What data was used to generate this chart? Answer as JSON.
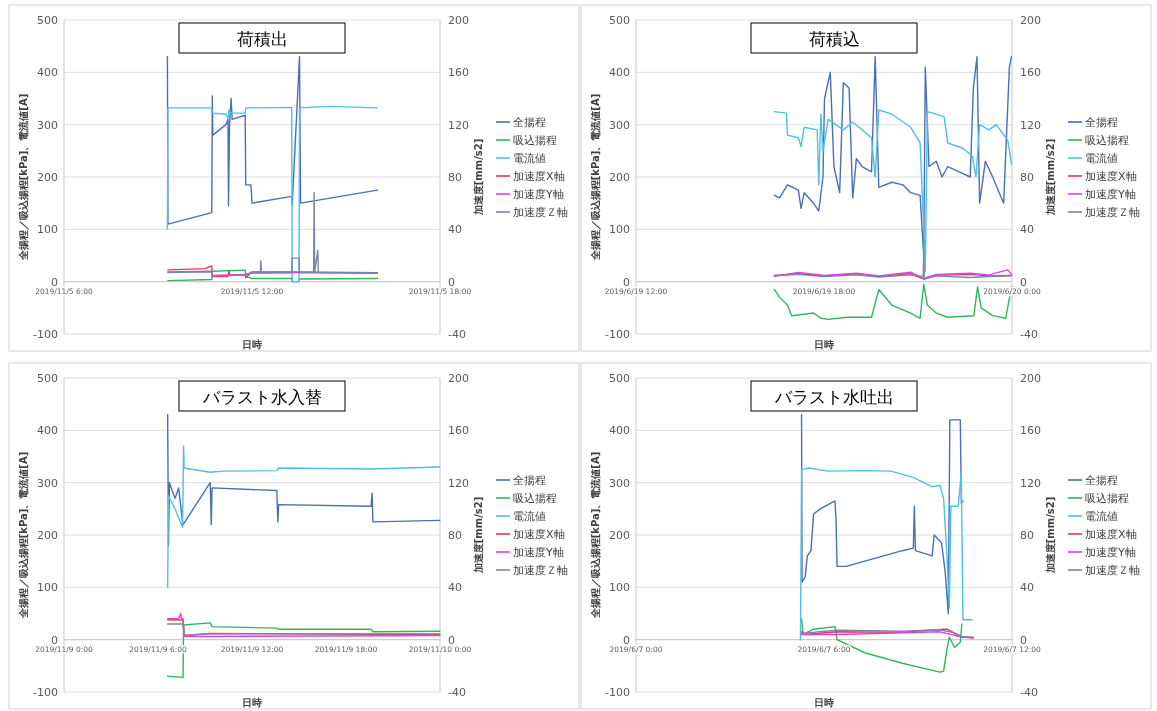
{
  "chart_data": [
    {
      "type": "line",
      "title": "荷積出",
      "xlabel": "日時",
      "ylabel": "全揚程／吸込揚程[kPa]、電流値[A]",
      "y2label": "加速度[mm/s2]",
      "grid": "y",
      "legend": "right",
      "xlim": [
        "2019-11-05T06:00",
        "2019-11-05T18:00"
      ],
      "xticks": [
        {
          "value": "2019-11-05T06:00",
          "label": "2019/11/5 6:00"
        },
        {
          "value": "2019-11-05T12:00",
          "label": "2019/11/5 12:00"
        },
        {
          "value": "2019-11-05T18:00",
          "label": "2019/11/5 18:00"
        }
      ],
      "ylim": [
        -100,
        500
      ],
      "yticks": [
        -100,
        0,
        100,
        200,
        300,
        400,
        500
      ],
      "y2lim": [
        -40,
        200
      ],
      "y2ticks": [
        -40,
        0,
        40,
        80,
        120,
        160,
        200
      ],
      "series": [
        {
          "name": "全揚程",
          "color": "#4a6fb5",
          "x": [
            "2019-11-05T09:18",
            "2019-11-05T09:19",
            "2019-11-05T10:43",
            "2019-11-05T10:44",
            "2019-11-05T10:45",
            "2019-11-05T11:10",
            "2019-11-05T11:14",
            "2019-11-05T11:15",
            "2019-11-05T11:17",
            "2019-11-05T11:20",
            "2019-11-05T11:22",
            "2019-11-05T11:47",
            "2019-11-05T11:48",
            "2019-11-05T11:58",
            "2019-11-05T12:00",
            "2019-11-05T13:16",
            "2019-11-05T13:17",
            "2019-11-05T13:31",
            "2019-11-05T13:33",
            "2019-11-05T16:00"
          ],
          "values": [
            430,
            110,
            132,
            355,
            280,
            300,
            310,
            145,
            300,
            350,
            310,
            318,
            185,
            185,
            150,
            163,
            148,
            430,
            150,
            175
          ]
        },
        {
          "name": "吸込揚程",
          "color": "#2eb85c",
          "x": [
            "2019-11-05T09:19",
            "2019-11-05T10:43",
            "2019-11-05T10:44",
            "2019-11-05T11:47",
            "2019-11-05T11:48",
            "2019-11-05T12:00",
            "2019-11-05T13:16",
            "2019-11-05T13:17",
            "2019-11-05T13:30",
            "2019-11-05T13:31",
            "2019-11-05T16:00"
          ],
          "values": [
            2,
            4,
            20,
            22,
            10,
            6,
            6,
            0,
            0,
            5,
            6
          ]
        },
        {
          "name": "電流値",
          "color": "#4dbfe8",
          "x": [
            "2019-11-05T09:18",
            "2019-11-05T09:19",
            "2019-11-05T10:43",
            "2019-11-05T10:44",
            "2019-11-05T11:10",
            "2019-11-05T11:14",
            "2019-11-05T11:16",
            "2019-11-05T11:20",
            "2019-11-05T11:47",
            "2019-11-05T11:48",
            "2019-11-05T13:16",
            "2019-11-05T13:17",
            "2019-11-05T13:30",
            "2019-11-05T13:31",
            "2019-11-05T14:30",
            "2019-11-05T16:00"
          ],
          "values": [
            100,
            332,
            332,
            322,
            320,
            312,
            328,
            322,
            322,
            332,
            333,
            0,
            0,
            332,
            335,
            332
          ]
        },
        {
          "name": "加速度X軸",
          "color": "#e8384f",
          "axis": "y2",
          "x": [
            "2019-11-05T09:19",
            "2019-11-05T10:30",
            "2019-11-05T10:43",
            "2019-11-05T10:44",
            "2019-11-05T11:14",
            "2019-11-05T11:16",
            "2019-11-05T11:18",
            "2019-11-05T11:47",
            "2019-11-05T11:48",
            "2019-11-05T12:00",
            "2019-11-05T13:16",
            "2019-11-05T16:00"
          ],
          "values": [
            9,
            10,
            12,
            4,
            4,
            8,
            5,
            5,
            3,
            7.5,
            7.5,
            6.8
          ]
        },
        {
          "name": "加速度Y軸",
          "color": "#e040e0",
          "axis": "y2",
          "x": [
            "2019-11-05T09:19",
            "2019-11-05T10:43",
            "2019-11-05T10:44",
            "2019-11-05T11:47",
            "2019-11-05T12:00",
            "2019-11-05T13:16",
            "2019-11-05T16:00"
          ],
          "values": [
            7.5,
            8,
            4.8,
            5.5,
            7,
            7,
            6.4
          ]
        },
        {
          "name": "加速度Ｚ軸",
          "color": "#7a84a8",
          "axis": "y2",
          "x": [
            "2019-11-05T09:19",
            "2019-11-05T10:43",
            "2019-11-05T10:44",
            "2019-11-05T11:47",
            "2019-11-05T12:00",
            "2019-11-05T12:16",
            "2019-11-05T12:17",
            "2019-11-05T12:18",
            "2019-11-05T13:16",
            "2019-11-05T13:17",
            "2019-11-05T13:30",
            "2019-11-05T13:31",
            "2019-11-05T13:58",
            "2019-11-05T13:59",
            "2019-11-05T14:00",
            "2019-11-05T14:06",
            "2019-11-05T14:07",
            "2019-11-05T16:00"
          ],
          "values": [
            7,
            7.5,
            4.4,
            5,
            6.6,
            6.6,
            16,
            6.6,
            6.8,
            18,
            18,
            7,
            7,
            68,
            7,
            24,
            7,
            6.8
          ]
        }
      ]
    },
    {
      "type": "line",
      "title": "荷積込",
      "xlabel": "日時",
      "ylabel": "全揚程／吸込揚程[kPa]、電流値[A]",
      "y2label": "加速度[mm/s2]",
      "grid": "y",
      "legend": "right",
      "xlim": [
        "2019-06-19T12:00",
        "2019-06-20T00:00"
      ],
      "xticks": [
        {
          "value": "2019-06-19T12:00",
          "label": "2019/6/19 12:00"
        },
        {
          "value": "2019-06-19T18:00",
          "label": "2019/6/19 18:00"
        },
        {
          "value": "2019-06-20T00:00",
          "label": "2019/6/20 0:00"
        }
      ],
      "ylim": [
        -100,
        500
      ],
      "yticks": [
        -100,
        0,
        100,
        200,
        300,
        400,
        500
      ],
      "y2lim": [
        -40,
        200
      ],
      "y2ticks": [
        -40,
        0,
        40,
        80,
        120,
        160,
        200
      ],
      "series": [
        {
          "name": "全揚程",
          "color": "#4a6fb5",
          "x": [
            "2019-06-19T16:25",
            "2019-06-19T16:35",
            "2019-06-19T16:50",
            "2019-06-19T17:11",
            "2019-06-19T17:16",
            "2019-06-19T17:22",
            "2019-06-19T17:40",
            "2019-06-19T17:50",
            "2019-06-19T17:58",
            "2019-06-19T18:01",
            "2019-06-19T18:12",
            "2019-06-19T18:19",
            "2019-06-19T18:30",
            "2019-06-19T18:37",
            "2019-06-19T18:48",
            "2019-06-19T18:55",
            "2019-06-19T19:02",
            "2019-06-19T19:13",
            "2019-06-19T19:31",
            "2019-06-19T19:38",
            "2019-06-19T19:45",
            "2019-06-19T20:10",
            "2019-06-19T20:31",
            "2019-06-19T20:46",
            "2019-06-19T21:04",
            "2019-06-19T21:11",
            "2019-06-19T21:14",
            "2019-06-19T21:21",
            "2019-06-19T21:35",
            "2019-06-19T21:46",
            "2019-06-19T21:57",
            "2019-06-19T22:19",
            "2019-06-19T22:40",
            "2019-06-19T22:46",
            "2019-06-19T22:53",
            "2019-06-19T22:58",
            "2019-06-19T23:09",
            "2019-06-19T23:23",
            "2019-06-19T23:44",
            "2019-06-19T23:55",
            "2019-06-19T23:59"
          ],
          "values": [
            165,
            160,
            185,
            175,
            140,
            170,
            150,
            135,
            200,
            350,
            400,
            220,
            170,
            380,
            370,
            160,
            235,
            220,
            210,
            430,
            180,
            190,
            185,
            170,
            165,
            50,
            410,
            220,
            230,
            200,
            220,
            210,
            200,
            370,
            430,
            150,
            230,
            200,
            150,
            410,
            430
          ]
        },
        {
          "name": "吸込揚程",
          "color": "#2eb85c",
          "x": [
            "2019-06-19T16:25",
            "2019-06-19T16:35",
            "2019-06-19T16:50",
            "2019-06-19T16:58",
            "2019-06-19T17:40",
            "2019-06-19T17:54",
            "2019-06-19T18:08",
            "2019-06-19T18:44",
            "2019-06-19T19:31",
            "2019-06-19T19:45",
            "2019-06-19T20:10",
            "2019-06-19T20:46",
            "2019-06-19T21:04",
            "2019-06-19T21:11",
            "2019-06-19T21:18",
            "2019-06-19T21:35",
            "2019-06-19T21:57",
            "2019-06-19T22:47",
            "2019-06-19T22:54",
            "2019-06-19T23:01",
            "2019-06-19T23:23",
            "2019-06-19T23:48",
            "2019-06-19T23:59"
          ],
          "values": [
            -15,
            -30,
            -45,
            -65,
            -60,
            -70,
            -72,
            -68,
            -68,
            -15,
            -45,
            -60,
            -70,
            -5,
            -45,
            -60,
            -68,
            -65,
            -10,
            -50,
            -65,
            -70,
            -10
          ]
        },
        {
          "name": "電流値",
          "color": "#4dbfe8",
          "x": [
            "2019-06-19T16:25",
            "2019-06-19T16:48",
            "2019-06-19T16:50",
            "2019-06-19T17:11",
            "2019-06-19T17:16",
            "2019-06-19T17:22",
            "2019-06-19T17:47",
            "2019-06-19T17:50",
            "2019-06-19T17:54",
            "2019-06-19T17:58",
            "2019-06-19T18:08",
            "2019-06-19T18:23",
            "2019-06-19T18:37",
            "2019-06-19T18:55",
            "2019-06-19T19:31",
            "2019-06-19T19:38",
            "2019-06-19T19:45",
            "2019-06-19T20:10",
            "2019-06-19T20:46",
            "2019-06-19T21:04",
            "2019-06-19T21:11",
            "2019-06-19T21:14",
            "2019-06-19T21:18",
            "2019-06-19T21:35",
            "2019-06-19T21:50",
            "2019-06-19T21:57",
            "2019-06-19T22:26",
            "2019-06-19T22:44",
            "2019-06-19T22:51",
            "2019-06-19T22:58",
            "2019-06-19T23:16",
            "2019-06-19T23:30",
            "2019-06-19T23:52",
            "2019-06-19T23:59"
          ],
          "values": [
            325,
            322,
            280,
            275,
            258,
            295,
            290,
            185,
            320,
            250,
            310,
            300,
            290,
            305,
            275,
            200,
            328,
            320,
            295,
            265,
            100,
            20,
            325,
            320,
            315,
            265,
            255,
            240,
            200,
            300,
            290,
            300,
            270,
            225
          ]
        },
        {
          "name": "加速度X軸",
          "color": "#e8384f",
          "axis": "y2",
          "x": [
            "2019-06-19T16:25",
            "2019-06-19T17:11",
            "2019-06-19T18:01",
            "2019-06-19T19:02",
            "2019-06-19T19:45",
            "2019-06-19T20:46",
            "2019-06-19T21:11",
            "2019-06-19T21:35",
            "2019-06-19T22:40",
            "2019-06-19T23:16",
            "2019-06-19T23:59"
          ],
          "values": [
            4.8,
            6,
            4.4,
            6,
            4,
            6,
            2,
            4.8,
            5.6,
            4.4,
            4.8
          ]
        },
        {
          "name": "加速度Y軸",
          "color": "#e040e0",
          "axis": "y2",
          "x": [
            "2019-06-19T16:25",
            "2019-06-19T17:11",
            "2019-06-19T18:01",
            "2019-06-19T19:02",
            "2019-06-19T19:45",
            "2019-06-19T20:46",
            "2019-06-19T21:11",
            "2019-06-19T21:35",
            "2019-06-19T22:40",
            "2019-06-19T23:16",
            "2019-06-19T23:52",
            "2019-06-19T23:59"
          ],
          "values": [
            4,
            7,
            4.8,
            6.4,
            4.4,
            7.2,
            2.4,
            5.6,
            6.4,
            5.2,
            9,
            5.6
          ]
        },
        {
          "name": "加速度Ｚ軸",
          "color": "#7a84a8",
          "axis": "y2",
          "x": [
            "2019-06-19T16:25",
            "2019-06-19T17:11",
            "2019-06-19T18:01",
            "2019-06-19T19:02",
            "2019-06-19T19:45",
            "2019-06-19T20:46",
            "2019-06-19T21:10",
            "2019-06-19T21:11",
            "2019-06-19T21:12",
            "2019-06-19T21:35",
            "2019-06-19T22:40",
            "2019-06-19T23:16",
            "2019-06-19T23:59"
          ],
          "values": [
            4.4,
            5.6,
            4,
            5.2,
            3.6,
            5.2,
            4,
            24,
            2,
            4.4,
            3.2,
            4,
            4.4
          ]
        }
      ]
    },
    {
      "type": "line",
      "title": "バラスト水入替",
      "xlabel": "日時",
      "ylabel": "全揚程／吸込揚程[kPa]、電流値[A]",
      "y2label": "加速度[mm/s2]",
      "grid": "y",
      "legend": "right",
      "xlim": [
        "2019-11-09T00:00",
        "2019-11-10T00:00"
      ],
      "xticks": [
        {
          "value": "2019-11-09T00:00",
          "label": "2019/11/9 0:00"
        },
        {
          "value": "2019-11-09T06:00",
          "label": "2019/11/9 6:00"
        },
        {
          "value": "2019-11-09T12:00",
          "label": "2019/11/9 12:00"
        },
        {
          "value": "2019-11-09T18:00",
          "label": "2019/11/9 18:00"
        },
        {
          "value": "2019-11-10T00:00",
          "label": "2019/11/10 0:00"
        }
      ],
      "ylim": [
        -100,
        500
      ],
      "yticks": [
        -100,
        0,
        100,
        200,
        300,
        400,
        500
      ],
      "y2lim": [
        -40,
        200
      ],
      "y2ticks": [
        -40,
        0,
        40,
        80,
        120,
        160,
        200
      ],
      "series": [
        {
          "name": "全揚程",
          "color": "#4a6fb5",
          "x": [
            "2019-11-09T06:37",
            "2019-11-09T06:40",
            "2019-11-09T06:44",
            "2019-11-09T07:05",
            "2019-11-09T07:19",
            "2019-11-09T07:34",
            "2019-11-09T07:36",
            "2019-11-09T09:20",
            "2019-11-09T09:24",
            "2019-11-09T09:27",
            "2019-11-09T13:35",
            "2019-11-09T13:39",
            "2019-11-09T13:42",
            "2019-11-09T19:36",
            "2019-11-09T19:40",
            "2019-11-09T19:43",
            "2019-11-09T23:59"
          ],
          "values": [
            430,
            180,
            300,
            270,
            290,
            225,
            220,
            300,
            220,
            290,
            285,
            225,
            258,
            255,
            280,
            225,
            228
          ]
        },
        {
          "name": "吸込揚程",
          "color": "#2eb85c",
          "x": [
            "2019-11-09T06:37",
            "2019-11-09T07:36",
            "2019-11-09T07:38",
            "2019-11-09T09:20",
            "2019-11-09T09:27",
            "2019-11-09T13:35",
            "2019-11-09T13:42",
            "2019-11-09T19:36",
            "2019-11-09T19:43",
            "2019-11-09T23:59"
          ],
          "values": [
            -70,
            -72,
            28,
            32,
            25,
            22,
            20,
            20,
            15,
            16
          ]
        },
        {
          "name": "電流値",
          "color": "#4dbfe8",
          "x": [
            "2019-11-09T06:37",
            "2019-11-09T06:40",
            "2019-11-09T07:05",
            "2019-11-09T07:34",
            "2019-11-09T07:38",
            "2019-11-09T07:40",
            "2019-11-09T09:20",
            "2019-11-09T10:09",
            "2019-11-09T13:35",
            "2019-11-09T13:42",
            "2019-11-09T19:36",
            "2019-11-09T23:59"
          ],
          "values": [
            100,
            275,
            250,
            215,
            370,
            328,
            320,
            322,
            323,
            328,
            326,
            330
          ]
        },
        {
          "name": "加速度X軸",
          "color": "#e8384f",
          "axis": "y2",
          "x": [
            "2019-11-09T06:37",
            "2019-11-09T07:36",
            "2019-11-09T07:40",
            "2019-11-09T09:20",
            "2019-11-09T23:59"
          ],
          "values": [
            15.2,
            15,
            3.2,
            4.8,
            4
          ]
        },
        {
          "name": "加速度Y軸",
          "color": "#e040e0",
          "axis": "y2",
          "x": [
            "2019-11-09T06:37",
            "2019-11-09T07:19",
            "2019-11-09T07:27",
            "2019-11-09T07:30",
            "2019-11-09T07:36",
            "2019-11-09T07:40",
            "2019-11-09T23:59"
          ],
          "values": [
            16,
            16,
            20,
            16,
            16,
            2.4,
            3.2
          ]
        },
        {
          "name": "加速度Ｚ軸",
          "color": "#7a84a8",
          "axis": "y2",
          "x": [
            "2019-11-09T06:37",
            "2019-11-09T07:36",
            "2019-11-09T07:40",
            "2019-11-09T09:20",
            "2019-11-09T23:59"
          ],
          "values": [
            12,
            12,
            3.2,
            4.4,
            4.4
          ]
        }
      ]
    },
    {
      "type": "line",
      "title": "バラスト水吐出",
      "xlabel": "日時",
      "ylabel": "全揚程／吸込揚程[kPa]、電流値[A]",
      "y2label": "加速度[mm/s2]",
      "grid": "y",
      "legend": "right",
      "xlim": [
        "2019-06-07T00:00",
        "2019-06-07T12:00"
      ],
      "xticks": [
        {
          "value": "2019-06-07T00:00",
          "label": "2019/6/7 0:00"
        },
        {
          "value": "2019-06-07T06:00",
          "label": "2019/6/7 6:00"
        },
        {
          "value": "2019-06-07T12:00",
          "label": "2019/6/7 12:00"
        }
      ],
      "ylim": [
        -100,
        500
      ],
      "yticks": [
        -100,
        0,
        100,
        200,
        300,
        400,
        500
      ],
      "y2lim": [
        -40,
        200
      ],
      "y2ticks": [
        -40,
        0,
        40,
        80,
        120,
        160,
        200
      ],
      "series": [
        {
          "name": "全揚程",
          "color": "#4a6fb5",
          "x": [
            "2019-06-07T05:17",
            "2019-06-07T05:18",
            "2019-06-07T05:24",
            "2019-06-07T05:28",
            "2019-06-07T05:35",
            "2019-06-07T05:40",
            "2019-06-07T05:53",
            "2019-06-07T06:21",
            "2019-06-07T06:23",
            "2019-06-07T06:25",
            "2019-06-07T06:43",
            "2019-06-07T07:18",
            "2019-06-07T07:54",
            "2019-06-07T08:30",
            "2019-06-07T08:51",
            "2019-06-07T08:53",
            "2019-06-07T08:55",
            "2019-06-07T09:27",
            "2019-06-07T09:31",
            "2019-06-07T09:45",
            "2019-06-07T09:52",
            "2019-06-07T09:58",
            "2019-06-07T10:01",
            "2019-06-07T10:21",
            "2019-06-07T10:23",
            "2019-06-07T10:26"
          ],
          "values": [
            430,
            110,
            120,
            160,
            170,
            240,
            250,
            265,
            230,
            140,
            140,
            150,
            160,
            170,
            175,
            255,
            170,
            160,
            200,
            185,
            130,
            50,
            420,
            420,
            260,
            265
          ]
        },
        {
          "name": "吸込揚程",
          "color": "#2eb85c",
          "x": [
            "2019-06-07T05:17",
            "2019-06-07T05:20",
            "2019-06-07T05:40",
            "2019-06-07T06:21",
            "2019-06-07T06:25",
            "2019-06-07T07:18",
            "2019-06-07T08:30",
            "2019-06-07T09:42",
            "2019-06-07T09:49",
            "2019-06-07T09:56",
            "2019-06-07T10:00",
            "2019-06-07T10:10",
            "2019-06-07T10:21",
            "2019-06-07T10:24"
          ],
          "values": [
            40,
            10,
            20,
            25,
            0,
            -25,
            -45,
            -62,
            -60,
            -15,
            5,
            -15,
            -5,
            30
          ]
        },
        {
          "name": "電流値",
          "color": "#4dbfe8",
          "x": [
            "2019-06-07T05:15",
            "2019-06-07T05:17",
            "2019-06-07T05:31",
            "2019-06-07T06:07",
            "2019-06-07T07:18",
            "2019-06-07T08:08",
            "2019-06-07T08:51",
            "2019-06-07T09:27",
            "2019-06-07T09:42",
            "2019-06-07T09:49",
            "2019-06-07T09:56",
            "2019-06-07T10:00",
            "2019-06-07T10:03",
            "2019-06-07T10:17",
            "2019-06-07T10:23",
            "2019-06-07T10:26",
            "2019-06-07T10:44"
          ],
          "values": [
            0,
            325,
            328,
            322,
            323,
            322,
            310,
            292,
            295,
            270,
            150,
            60,
            255,
            255,
            320,
            38,
            38
          ]
        },
        {
          "name": "加速度X軸",
          "color": "#e8384f",
          "axis": "y2",
          "x": [
            "2019-06-07T05:17",
            "2019-06-07T05:24",
            "2019-06-07T06:25",
            "2019-06-07T08:30",
            "2019-06-07T09:49",
            "2019-06-07T09:56",
            "2019-06-07T10:10",
            "2019-06-07T10:24",
            "2019-06-07T10:46"
          ],
          "values": [
            6,
            4,
            6,
            5.6,
            8,
            8,
            4.8,
            2,
            1.2
          ]
        },
        {
          "name": "加速度Y軸",
          "color": "#e040e0",
          "axis": "y2",
          "x": [
            "2019-06-07T05:17",
            "2019-06-07T06:25",
            "2019-06-07T09:42",
            "2019-06-07T10:24",
            "2019-06-07T10:46"
          ],
          "values": [
            4,
            4,
            6,
            2,
            1.6
          ]
        },
        {
          "name": "加速度Ｚ軸",
          "color": "#7a84a8",
          "axis": "y2",
          "x": [
            "2019-06-07T05:17",
            "2019-06-07T06:25",
            "2019-06-07T08:30",
            "2019-06-07T09:42",
            "2019-06-07T10:10",
            "2019-06-07T10:24",
            "2019-06-07T10:46"
          ],
          "values": [
            4.8,
            7.2,
            6.4,
            7.6,
            5.2,
            2.4,
            1.6
          ]
        }
      ]
    }
  ]
}
